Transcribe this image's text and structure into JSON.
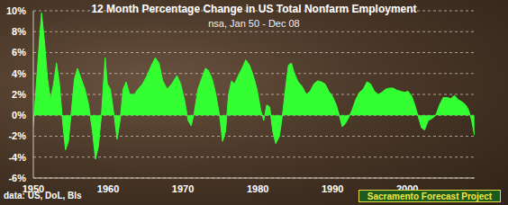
{
  "chart_data": {
    "type": "area",
    "title": "12 Month Percentage Change in US Total Nonfarm Employment",
    "subtitle": "nsa, Jan 50 - Dec 08",
    "annotations": [
      "data: US, DoL, Bls",
      "Sacramento Forecast Project"
    ],
    "color": "#33ff33",
    "grid": true,
    "xlim": [
      1950,
      2009
    ],
    "xticks": [
      1950,
      1960,
      1970,
      1980,
      1990,
      2000
    ],
    "ylim": [
      -6,
      10
    ],
    "yticks": [
      {
        "value": -6,
        "label": "-6%"
      },
      {
        "value": -4,
        "label": "-4%"
      },
      {
        "value": -2,
        "label": "-2%"
      },
      {
        "value": 0,
        "label": "0%"
      },
      {
        "value": 2,
        "label": "2%"
      },
      {
        "value": 4,
        "label": "4%"
      },
      {
        "value": 6,
        "label": "6%"
      },
      {
        "value": 8,
        "label": "8%"
      },
      {
        "value": 10,
        "label": "10%"
      }
    ],
    "x": [
      1950.0,
      1950.5,
      1950.9,
      1951.1,
      1951.5,
      1951.9,
      1952.3,
      1952.7,
      1953.1,
      1953.5,
      1953.9,
      1954.3,
      1954.7,
      1955.1,
      1955.5,
      1955.9,
      1956.4,
      1956.9,
      1957.4,
      1957.9,
      1958.3,
      1958.7,
      1959.1,
      1959.6,
      1959.9,
      1960.3,
      1960.8,
      1961.2,
      1961.6,
      1962.0,
      1962.4,
      1962.9,
      1963.5,
      1964.0,
      1964.6,
      1965.2,
      1965.8,
      1966.3,
      1966.8,
      1967.3,
      1967.9,
      1968.5,
      1969.2,
      1969.7,
      1970.2,
      1970.7,
      1971.1,
      1971.5,
      1972.0,
      1972.5,
      1973.0,
      1973.4,
      1973.9,
      1974.4,
      1974.9,
      1975.3,
      1975.7,
      1976.1,
      1976.5,
      1976.9,
      1977.4,
      1977.9,
      1978.4,
      1978.9,
      1979.4,
      1979.9,
      1980.4,
      1980.8,
      1981.2,
      1981.6,
      1982.0,
      1982.4,
      1982.9,
      1983.3,
      1983.7,
      1984.1,
      1984.5,
      1984.9,
      1985.4,
      1985.9,
      1986.5,
      1987.0,
      1987.5,
      1988.0,
      1988.5,
      1989.0,
      1989.5,
      1990.0,
      1990.5,
      1990.9,
      1991.3,
      1991.7,
      1992.1,
      1992.6,
      1993.1,
      1993.6,
      1994.1,
      1994.6,
      1995.1,
      1995.6,
      1996.1,
      1996.6,
      1997.1,
      1997.6,
      1998.1,
      1998.6,
      1999.1,
      1999.6,
      2000.1,
      2000.6,
      2001.0,
      2001.4,
      2001.9,
      2002.3,
      2002.8,
      2003.3,
      2003.8,
      2004.3,
      2004.8,
      2005.3,
      2005.8,
      2006.3,
      2006.8,
      2007.3,
      2007.8,
      2008.2,
      2008.6,
      2008.96
    ],
    "values": [
      -1,
      4,
      8,
      9.8,
      7,
      3.5,
      1.5,
      3,
      5,
      3,
      -0.5,
      -3.3,
      -2.5,
      0.5,
      3.5,
      4.5,
      3.5,
      2.5,
      1,
      -1.5,
      -4.2,
      -3,
      0,
      5.5,
      3,
      2.5,
      0,
      -2.3,
      -0.5,
      2.5,
      3.2,
      2,
      2,
      2.5,
      3,
      3.8,
      4.8,
      5.5,
      5,
      3.3,
      2.5,
      3,
      3.8,
      3,
      1.5,
      -0.5,
      -1,
      0.2,
      2.5,
      3.5,
      4.5,
      4.3,
      3.5,
      2,
      0,
      -2.5,
      -1.5,
      2,
      3.3,
      3,
      3.8,
      4.5,
      5.3,
      4.8,
      3.8,
      2.5,
      0.5,
      -0.5,
      1,
      0.8,
      -1.5,
      -2.7,
      -2,
      0,
      2.5,
      4.8,
      5,
      4,
      3.2,
      2.8,
      2,
      2.3,
      3,
      3.3,
      3.2,
      3,
      2.3,
      1.8,
      1,
      0,
      -1.1,
      -0.8,
      -0.3,
      0.5,
      1.5,
      2.2,
      2.5,
      3.2,
      3,
      2.3,
      2,
      2.2,
      2.5,
      2.6,
      2.6,
      2.4,
      2.3,
      2.2,
      2.3,
      1.8,
      1,
      0,
      -1.2,
      -1.4,
      -0.5,
      -0.3,
      0,
      1,
      1.7,
      1.7,
      1.6,
      1.9,
      1.5,
      1.3,
      1,
      0.5,
      -0.5,
      -1.9
    ]
  }
}
